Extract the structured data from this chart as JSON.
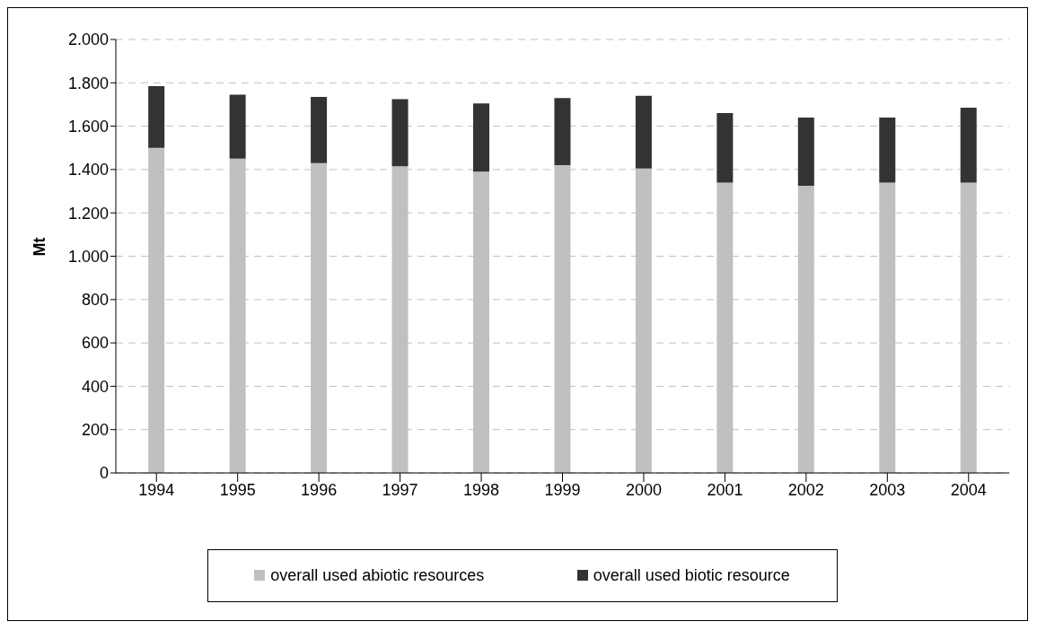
{
  "chart_data": {
    "type": "bar",
    "stacked": true,
    "ylabel": "Mt",
    "categories": [
      "1994",
      "1995",
      "1996",
      "1997",
      "1998",
      "1999",
      "2000",
      "2001",
      "2002",
      "2003",
      "2004"
    ],
    "series": [
      {
        "name": "overall used abiotic resources",
        "color": "#c0c0c0",
        "values": [
          1500,
          1450,
          1430,
          1415,
          1390,
          1420,
          1405,
          1340,
          1325,
          1340,
          1340
        ]
      },
      {
        "name": "overall used biotic resource",
        "color": "#333333",
        "values": [
          285,
          295,
          305,
          310,
          315,
          310,
          335,
          320,
          315,
          300,
          345
        ]
      }
    ],
    "ylim": [
      0,
      2000
    ],
    "yticks": [
      0,
      {
        "value": 200,
        "label": "200"
      },
      {
        "value": 400,
        "label": "400"
      },
      {
        "value": 600,
        "label": "600"
      },
      {
        "value": 800,
        "label": "800"
      },
      {
        "value": 1000,
        "label": "1.000"
      },
      {
        "value": 1200,
        "label": "1.200"
      },
      {
        "value": 1400,
        "label": "1.400"
      },
      {
        "value": 1600,
        "label": "1.600"
      },
      {
        "value": 1800,
        "label": "1.800"
      },
      {
        "value": 2000,
        "label": "2.000"
      }
    ],
    "grid": "y",
    "legend": "bottom"
  }
}
